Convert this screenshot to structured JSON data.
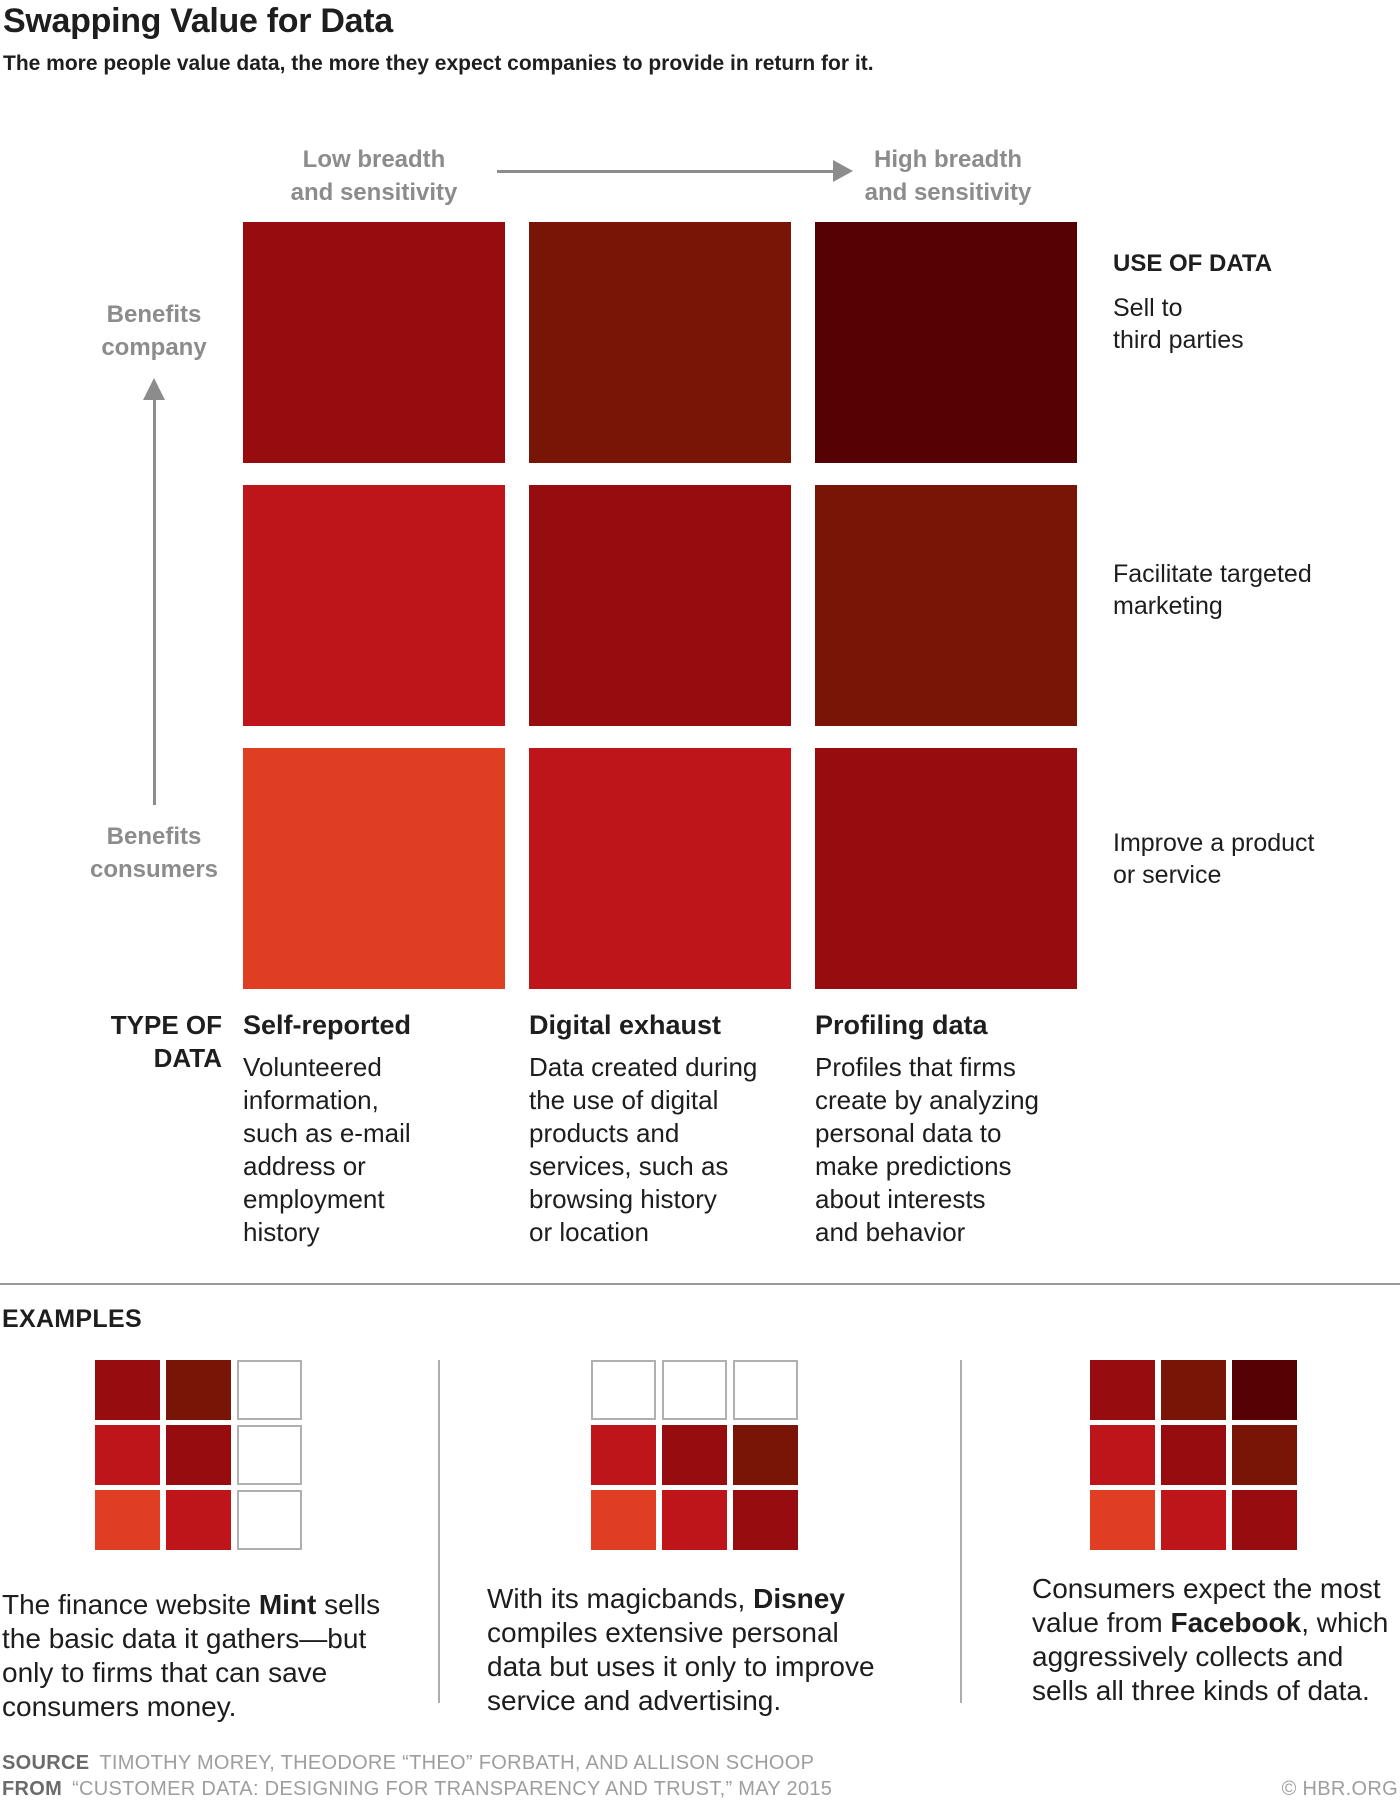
{
  "title": "Swapping Value for Data",
  "subtitle": "The more people value data, the more they expect companies to provide in return for it.",
  "palette": {
    "levels": [
      "#FFFFFF",
      "#E03E23",
      "#BE151A",
      "#970C0E",
      "#791506",
      "#560103"
    ],
    "empty_border": "#B0B0B0",
    "gray_label": "#8C8C8C",
    "arrow": "#8C8C8C"
  },
  "axis": {
    "x_low": "Low breadth\nand sensitivity",
    "x_high": "High breadth\nand sensitivity",
    "y_high": "Benefits\ncompany",
    "y_low": "Benefits\nconsumers"
  },
  "use_of_data": {
    "heading": "USE OF DATA",
    "rows": [
      "Sell to\nthird parties",
      "Facilitate targeted\nmarketing",
      "Improve a product\nor service"
    ]
  },
  "type_of_data": {
    "heading": "TYPE OF\nDATA",
    "columns": [
      {
        "name": "Self-reported",
        "description": "Volunteered\ninformation,\nsuch as e-mail\naddress or\nemployment\nhistory"
      },
      {
        "name": "Digital exhaust",
        "description": "Data created during\nthe use of digital\nproducts and\nservices, such as\nbrowsing history\nor location"
      },
      {
        "name": "Profiling data",
        "description": "Profiles that firms\ncreate by analyzing\npersonal data to\nmake predictions\nabout interests\nand behavior"
      }
    ]
  },
  "chart_data": {
    "type": "heatmap",
    "title": "Swapping Value for Data",
    "subtitle": "The more people value data, the more they expect companies to provide in return for it.",
    "x_categories": [
      "Self-reported",
      "Digital exhaust",
      "Profiling data"
    ],
    "y_categories_top_to_bottom": [
      "Sell to third parties",
      "Facilitate targeted marketing",
      "Improve a product or service"
    ],
    "x_axis_annotation": "Low breadth and sensitivity → High breadth and sensitivity",
    "y_axis_annotation": "Benefits consumers → Benefits company",
    "value_scale": "intensity 1 (lightest, lowest expected value) to 5 (darkest, highest expected value); 0 = empty",
    "grid_values_top_to_bottom": [
      [
        3,
        4,
        5
      ],
      [
        2,
        3,
        4
      ],
      [
        1,
        2,
        3
      ]
    ],
    "legend_position": "none",
    "grid_lines": false
  },
  "examples": {
    "heading": "EXAMPLES",
    "items": [
      {
        "company": "Mint",
        "grid_values_top_to_bottom": [
          [
            3,
            4,
            0
          ],
          [
            2,
            3,
            0
          ],
          [
            1,
            2,
            0
          ]
        ],
        "caption_before": "The finance website ",
        "caption_bold": "Mint",
        "caption_after": " sells\nthe basic data it gathers—but\nonly to firms that can save\nconsumers money."
      },
      {
        "company": "Disney",
        "grid_values_top_to_bottom": [
          [
            0,
            0,
            0
          ],
          [
            2,
            3,
            4
          ],
          [
            1,
            2,
            3
          ]
        ],
        "caption_before": "With its magicbands, ",
        "caption_bold": "Disney",
        "caption_after": "\ncompiles extensive personal\ndata but uses it only to improve\nservice and advertising."
      },
      {
        "company": "Facebook",
        "grid_values_top_to_bottom": [
          [
            3,
            4,
            5
          ],
          [
            2,
            3,
            4
          ],
          [
            1,
            2,
            3
          ]
        ],
        "caption_before": "Consumers expect the most\nvalue from ",
        "caption_bold": "Facebook",
        "caption_after": ", which\naggressively collects and\nsells all three kinds of data."
      }
    ]
  },
  "footer": {
    "source_label": "SOURCE",
    "source_text": "TIMOTHY MOREY, THEODORE “THEO” FORBATH, AND ALLISON SCHOOP",
    "from_label": "FROM",
    "from_text": "“CUSTOMER DATA: DESIGNING FOR TRANSPARENCY AND TRUST,” MAY 2015",
    "credit": "© HBR.ORG"
  }
}
